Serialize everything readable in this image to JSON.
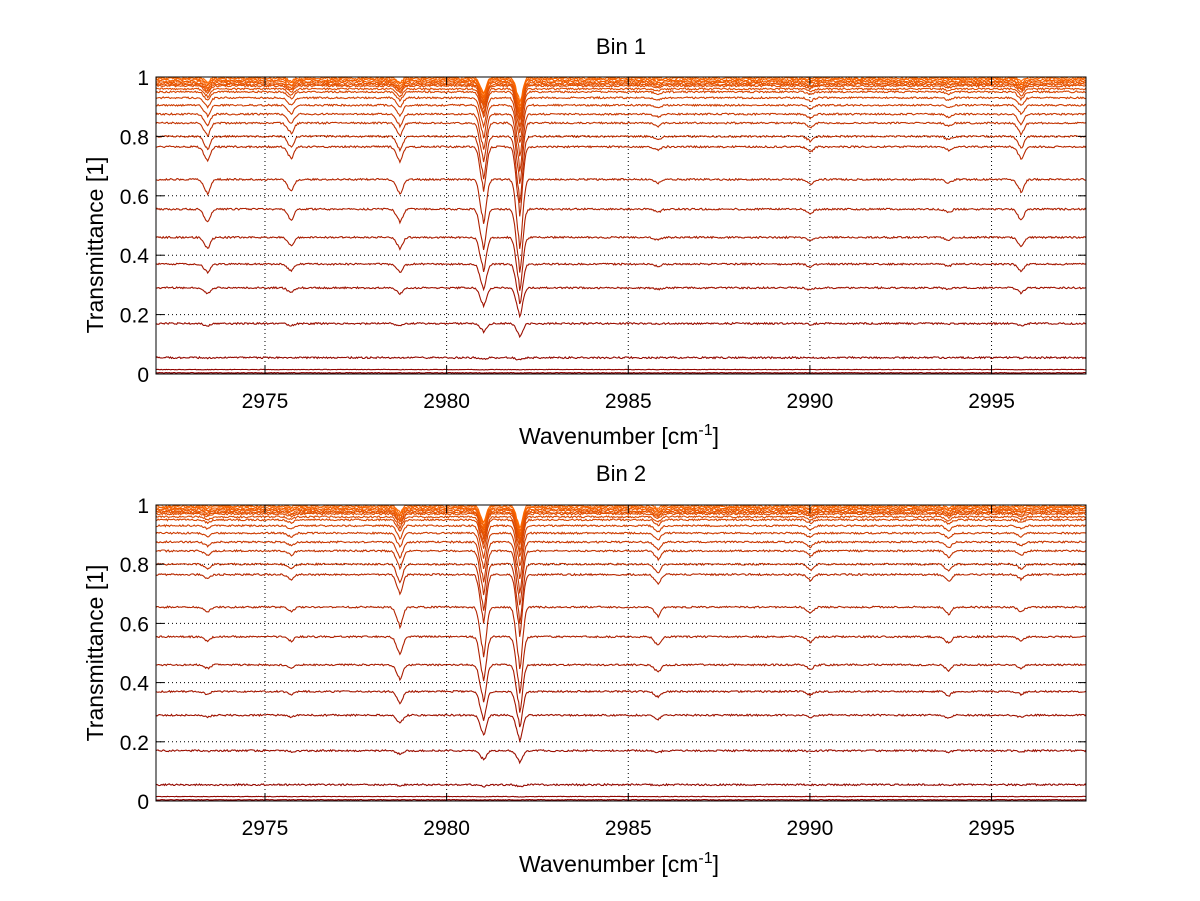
{
  "chart_data": [
    {
      "type": "line",
      "title": "Bin 1",
      "xlabel_prefix": "Wavenumber [cm",
      "xlabel_exponent": "-1",
      "xlabel_suffix": "]",
      "ylabel": "Transmittance [1]",
      "xlim": [
        2972,
        2997.6
      ],
      "ylim": [
        0,
        1
      ],
      "xticks": [
        2975,
        2980,
        2985,
        2990,
        2995
      ],
      "xtick_labels": [
        "2975",
        "2980",
        "2985",
        "2990",
        "2995"
      ],
      "yticks": [
        0,
        0.2,
        0.4,
        0.6,
        0.8,
        1
      ],
      "ytick_labels": [
        "0",
        "0.2",
        "0.4",
        "0.6",
        "0.8",
        "1"
      ],
      "grid": true,
      "grid_style": "dotted",
      "series_baselines": [
        1.0,
        0.995,
        0.99,
        0.985,
        0.98,
        0.975,
        0.97,
        0.96,
        0.95,
        0.93,
        0.905,
        0.875,
        0.845,
        0.8,
        0.765,
        0.655,
        0.555,
        0.46,
        0.37,
        0.29,
        0.17,
        0.055,
        0.015,
        0.004
      ],
      "absorption_lines": [
        {
          "center": 2973.4,
          "depth": 0.06
        },
        {
          "center": 2975.7,
          "depth": 0.05
        },
        {
          "center": 2978.7,
          "depth": 0.06
        },
        {
          "center": 2981.0,
          "depth": 0.18
        },
        {
          "center": 2982.0,
          "depth": 0.28
        },
        {
          "center": 2985.8,
          "depth": 0.015
        },
        {
          "center": 2990.0,
          "depth": 0.02
        },
        {
          "center": 2993.8,
          "depth": 0.015
        },
        {
          "center": 2995.8,
          "depth": 0.05
        }
      ]
    },
    {
      "type": "line",
      "title": "Bin 2",
      "xlabel_prefix": "Wavenumber [cm",
      "xlabel_exponent": "-1",
      "xlabel_suffix": "]",
      "ylabel": "Transmittance [1]",
      "xlim": [
        2972,
        2997.6
      ],
      "ylim": [
        0,
        1
      ],
      "xticks": [
        2975,
        2980,
        2985,
        2990,
        2995
      ],
      "xtick_labels": [
        "2975",
        "2980",
        "2985",
        "2990",
        "2995"
      ],
      "yticks": [
        0,
        0.2,
        0.4,
        0.6,
        0.8,
        1
      ],
      "ytick_labels": [
        "0",
        "0.2",
        "0.4",
        "0.6",
        "0.8",
        "1"
      ],
      "grid": true,
      "grid_style": "dotted",
      "series_baselines": [
        1.0,
        0.995,
        0.99,
        0.985,
        0.98,
        0.975,
        0.97,
        0.96,
        0.95,
        0.93,
        0.905,
        0.875,
        0.845,
        0.8,
        0.765,
        0.655,
        0.555,
        0.46,
        0.37,
        0.29,
        0.17,
        0.055,
        0.015,
        0.004
      ],
      "absorption_lines": [
        {
          "center": 2973.4,
          "depth": 0.02
        },
        {
          "center": 2975.7,
          "depth": 0.02
        },
        {
          "center": 2978.7,
          "depth": 0.08
        },
        {
          "center": 2981.0,
          "depth": 0.2
        },
        {
          "center": 2982.0,
          "depth": 0.25
        },
        {
          "center": 2985.8,
          "depth": 0.04
        },
        {
          "center": 2990.0,
          "depth": 0.025
        },
        {
          "center": 2993.8,
          "depth": 0.03
        },
        {
          "center": 2995.8,
          "depth": 0.02
        }
      ]
    }
  ],
  "colors": {
    "series_bottom": "#8b0000",
    "series_top": "#ff6a00",
    "axis": "#000000",
    "grid": "#000000",
    "background": "#ffffff"
  }
}
